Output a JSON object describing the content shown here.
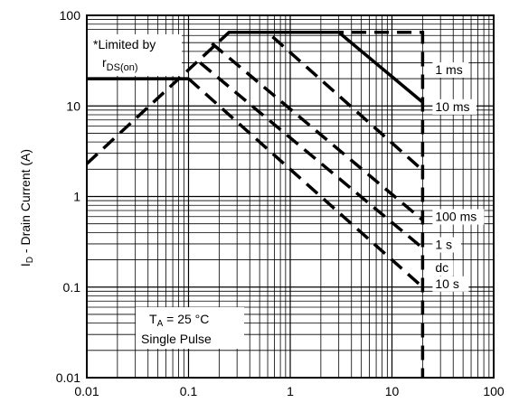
{
  "chart_data": {
    "type": "line",
    "title": "",
    "xlabel": "",
    "ylabel": "I D - Drain Current (A)",
    "ylabel_parts": {
      "prefix": "I",
      "sub": "D",
      "rest": " - Drain Current (A)"
    },
    "x_scale": "log",
    "y_scale": "log",
    "xlim": [
      0.01,
      100
    ],
    "ylim": [
      0.01,
      100
    ],
    "grid": true,
    "x_ticks": [
      "0.01",
      "0.1",
      "1",
      "10",
      "100"
    ],
    "y_ticks": [
      "0.01",
      "0.1",
      "1",
      "10",
      "100"
    ],
    "series": [
      {
        "name": "1 ms",
        "style": "solid",
        "points": [
          [
            0.6,
            65
          ],
          [
            3,
            65
          ],
          [
            20,
            11
          ]
        ]
      },
      {
        "name": "10 ms",
        "style": "dashed",
        "points": [
          [
            0.25,
            65
          ],
          [
            0.6,
            65
          ],
          [
            20,
            1.95
          ]
        ]
      },
      {
        "name": "100 ms",
        "style": "dashed",
        "points": [
          [
            0.17,
            49
          ],
          [
            20,
            0.55
          ]
        ]
      },
      {
        "name": "1 s",
        "style": "dashed",
        "points": [
          [
            0.13,
            30
          ],
          [
            20,
            0.27
          ]
        ]
      },
      {
        "name": "10 s",
        "style": "dashed",
        "points": [
          [
            0.1,
            20
          ],
          [
            20,
            0.1
          ]
        ]
      },
      {
        "name": "dc",
        "style": "dashed",
        "points": [
          [
            0.01,
            2.3
          ],
          [
            0.25,
            65
          ],
          [
            20,
            65
          ],
          [
            20,
            0.01
          ]
        ]
      },
      {
        "name": "",
        "style": "solid",
        "points": [
          [
            0.01,
            20
          ],
          [
            0.1,
            20
          ]
        ]
      }
    ],
    "annotations": {
      "limited_line1": "*Limited by",
      "limited_r": "r",
      "limited_sub": "DS(on)",
      "ta_prefix": "T",
      "ta_sub": "A",
      "ta_rest": " = 25 °C",
      "single_pulse": "Single Pulse"
    }
  }
}
